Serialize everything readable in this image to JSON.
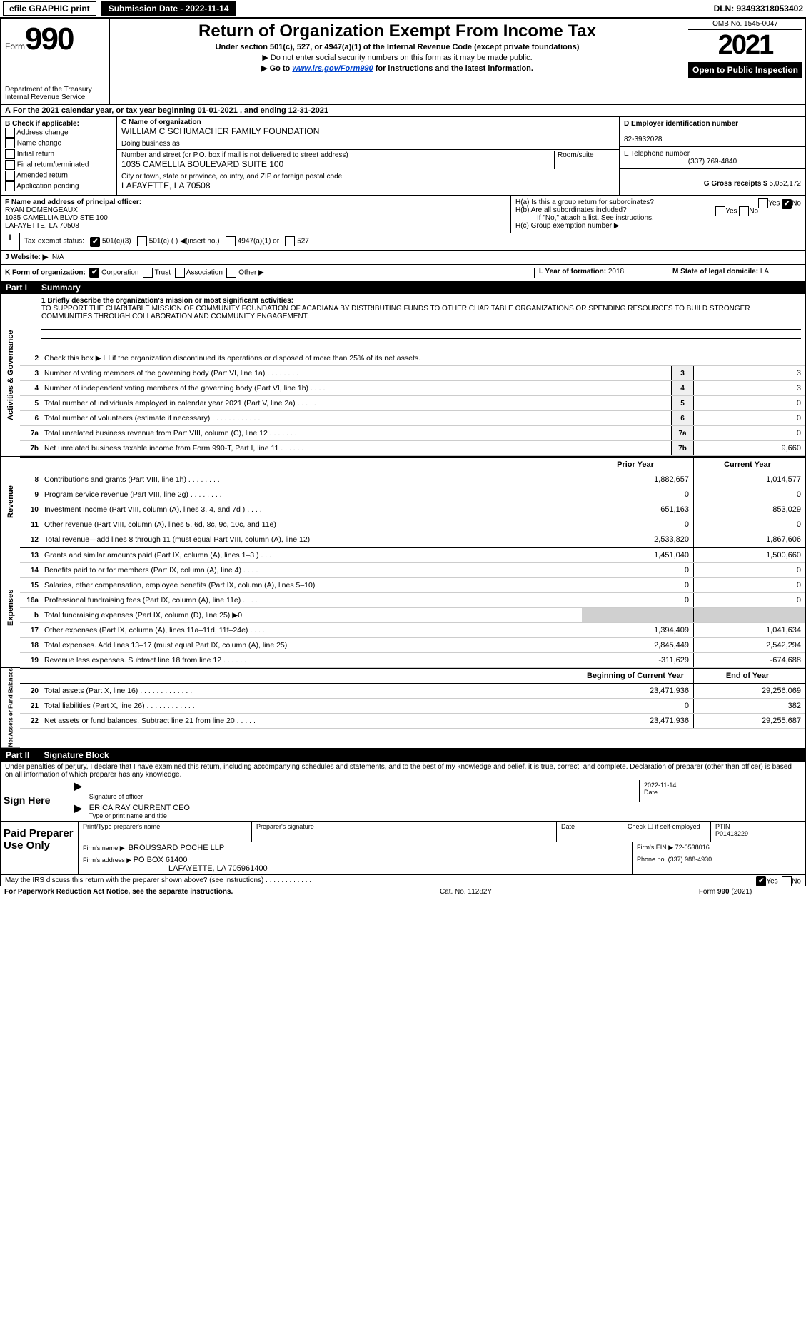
{
  "topbar": {
    "efile": "efile GRAPHIC print",
    "submission": "Submission Date - 2022-11-14",
    "dln": "DLN: 93493318053402"
  },
  "header": {
    "form_prefix": "Form",
    "form_number": "990",
    "title": "Return of Organization Exempt From Income Tax",
    "subtitle1": "Under section 501(c), 527, or 4947(a)(1) of the Internal Revenue Code (except private foundations)",
    "subtitle2": "▶ Do not enter social security numbers on this form as it may be made public.",
    "subtitle3_pre": "▶ Go to ",
    "subtitle3_link": "www.irs.gov/Form990",
    "subtitle3_post": " for instructions and the latest information.",
    "dept": "Department of the Treasury\nInternal Revenue Service",
    "omb": "OMB No. 1545-0047",
    "year": "2021",
    "open_pub": "Open to Public Inspection"
  },
  "section_a": {
    "period": "For the 2021 calendar year, or tax year beginning 01-01-2021    , and ending 12-31-2021"
  },
  "section_b": {
    "label": "B Check if applicable:",
    "items": [
      "Address change",
      "Name change",
      "Initial return",
      "Final return/terminated",
      "Amended return",
      "Application pending"
    ]
  },
  "section_c": {
    "name_label": "C Name of organization",
    "name": "WILLIAM C SCHUMACHER FAMILY FOUNDATION",
    "dba_label": "Doing business as",
    "dba": "",
    "street_label": "Number and street (or P.O. box if mail is not delivered to street address)",
    "room_label": "Room/suite",
    "street": "1035 CAMELLIA BOULEVARD SUITE 100",
    "city_label": "City or town, state or province, country, and ZIP or foreign postal code",
    "city": "LAFAYETTE, LA  70508"
  },
  "section_d": {
    "label": "D Employer identification number",
    "ein": "82-3932028"
  },
  "section_e": {
    "label": "E Telephone number",
    "phone": "(337) 769-4840"
  },
  "section_g": {
    "label": "G Gross receipts $",
    "amount": "5,052,172"
  },
  "section_f": {
    "label": "F Name and address of principal officer:",
    "name": "RYAN DOMENGEAUX",
    "addr1": "1035 CAMELLIA BLVD STE 100",
    "addr2": "LAFAYETTE, LA  70508"
  },
  "section_h": {
    "ha": "H(a)  Is this a group return for subordinates?",
    "hb": "H(b)  Are all subordinates included?",
    "hb_note": "If \"No,\" attach a list. See instructions.",
    "hc": "H(c)  Group exemption number ▶"
  },
  "section_i": {
    "label": "Tax-exempt status:",
    "opt1": "501(c)(3)",
    "opt2": "501(c) (  ) ◀(insert no.)",
    "opt3": "4947(a)(1) or",
    "opt4": "527"
  },
  "section_j": {
    "label": "J    Website: ▶",
    "value": "N/A"
  },
  "section_k": {
    "label": "K Form of organization:",
    "opts": [
      "Corporation",
      "Trust",
      "Association",
      "Other ▶"
    ]
  },
  "section_l": {
    "label": "L Year of formation:",
    "value": "2018"
  },
  "section_m": {
    "label": "M State of legal domicile:",
    "value": "LA"
  },
  "part1": {
    "header_num": "Part I",
    "header_title": "Summary",
    "line1_label": "1  Briefly describe the organization's mission or most significant activities:",
    "line1_text": "TO SUPPORT THE CHARITABLE MISSION OF COMMUNITY FOUNDATION OF ACADIANA BY DISTRIBUTING FUNDS TO OTHER CHARITABLE ORGANIZATIONS OR SPENDING RESOURCES TO BUILD STRONGER COMMUNITIES THROUGH COLLABORATION AND COMMUNITY ENGAGEMENT.",
    "sidebar1": "Activities & Governance",
    "sidebar2": "Revenue",
    "sidebar3": "Expenses",
    "sidebar4": "Net Assets or Fund Balances",
    "line2": "Check this box ▶ ☐ if the organization discontinued its operations or disposed of more than 25% of its net assets.",
    "lines_single": [
      {
        "num": "3",
        "desc": "Number of voting members of the governing body (Part VI, line 1a)  .  .  .  .  .  .  .  .",
        "box": "3",
        "val": "3"
      },
      {
        "num": "4",
        "desc": "Number of independent voting members of the governing body (Part VI, line 1b)  .  .  .  .",
        "box": "4",
        "val": "3"
      },
      {
        "num": "5",
        "desc": "Total number of individuals employed in calendar year 2021 (Part V, line 2a)  .  .  .  .  .",
        "box": "5",
        "val": "0"
      },
      {
        "num": "6",
        "desc": "Total number of volunteers (estimate if necessary)  .  .  .  .  .  .  .  .  .  .  .  .",
        "box": "6",
        "val": "0"
      },
      {
        "num": "7a",
        "desc": "Total unrelated business revenue from Part VIII, column (C), line 12  .  .  .  .  .  .  .",
        "box": "7a",
        "val": "0"
      },
      {
        "num": "7b",
        "desc": "Net unrelated business taxable income from Form 990-T, Part I, line 11  .  .  .  .  .  .",
        "box": "7b",
        "val": "9,660"
      }
    ],
    "col_prior": "Prior Year",
    "col_current": "Current Year",
    "lines_dual_rev": [
      {
        "num": "8",
        "desc": "Contributions and grants (Part VIII, line 1h)  .  .  .  .  .  .  .  .",
        "prior": "1,882,657",
        "cur": "1,014,577"
      },
      {
        "num": "9",
        "desc": "Program service revenue (Part VIII, line 2g)  .  .  .  .  .  .  .  .",
        "prior": "0",
        "cur": "0"
      },
      {
        "num": "10",
        "desc": "Investment income (Part VIII, column (A), lines 3, 4, and 7d )  .  .  .  .",
        "prior": "651,163",
        "cur": "853,029"
      },
      {
        "num": "11",
        "desc": "Other revenue (Part VIII, column (A), lines 5, 6d, 8c, 9c, 10c, and 11e)",
        "prior": "0",
        "cur": "0"
      },
      {
        "num": "12",
        "desc": "Total revenue—add lines 8 through 11 (must equal Part VIII, column (A), line 12)",
        "prior": "2,533,820",
        "cur": "1,867,606"
      }
    ],
    "lines_dual_exp": [
      {
        "num": "13",
        "desc": "Grants and similar amounts paid (Part IX, column (A), lines 1–3 )  .  .  .",
        "prior": "1,451,040",
        "cur": "1,500,660"
      },
      {
        "num": "14",
        "desc": "Benefits paid to or for members (Part IX, column (A), line 4)  .  .  .  .",
        "prior": "0",
        "cur": "0"
      },
      {
        "num": "15",
        "desc": "Salaries, other compensation, employee benefits (Part IX, column (A), lines 5–10)",
        "prior": "0",
        "cur": "0"
      },
      {
        "num": "16a",
        "desc": "Professional fundraising fees (Part IX, column (A), line 11e)  .  .  .  .",
        "prior": "0",
        "cur": "0"
      },
      {
        "num": "b",
        "desc": "Total fundraising expenses (Part IX, column (D), line 25) ▶0",
        "prior": "",
        "cur": ""
      },
      {
        "num": "17",
        "desc": "Other expenses (Part IX, column (A), lines 11a–11d, 11f–24e)  .  .  .  .",
        "prior": "1,394,409",
        "cur": "1,041,634"
      },
      {
        "num": "18",
        "desc": "Total expenses. Add lines 13–17 (must equal Part IX, column (A), line 25)",
        "prior": "2,845,449",
        "cur": "2,542,294"
      },
      {
        "num": "19",
        "desc": "Revenue less expenses. Subtract line 18 from line 12  .  .  .  .  .  .",
        "prior": "-311,629",
        "cur": "-674,688"
      }
    ],
    "col_begin": "Beginning of Current Year",
    "col_end": "End of Year",
    "lines_dual_net": [
      {
        "num": "20",
        "desc": "Total assets (Part X, line 16)  .  .  .  .  .  .  .  .  .  .  .  .  .",
        "prior": "23,471,936",
        "cur": "29,256,069"
      },
      {
        "num": "21",
        "desc": "Total liabilities (Part X, line 26)  .  .  .  .  .  .  .  .  .  .  .  .",
        "prior": "0",
        "cur": "382"
      },
      {
        "num": "22",
        "desc": "Net assets or fund balances. Subtract line 21 from line 20  .  .  .  .  .",
        "prior": "23,471,936",
        "cur": "29,255,687"
      }
    ]
  },
  "part2": {
    "header_num": "Part II",
    "header_title": "Signature Block",
    "penalty": "Under penalties of perjury, I declare that I have examined this return, including accompanying schedules and statements, and to the best of my knowledge and belief, it is true, correct, and complete. Declaration of preparer (other than officer) is based on all information of which preparer has any knowledge."
  },
  "sign": {
    "label": "Sign Here",
    "sig_label": "Signature of officer",
    "date": "2022-11-14",
    "date_label": "Date",
    "name": "ERICA RAY CURRENT CEO",
    "name_label": "Type or print name and title"
  },
  "paid": {
    "label": "Paid Preparer Use Only",
    "h1": "Print/Type preparer's name",
    "h2": "Preparer's signature",
    "h3": "Date",
    "h4": "Check ☐ if self-employed",
    "h5_label": "PTIN",
    "h5": "P01418229",
    "firm_label": "Firm's name    ▶",
    "firm": "BROUSSARD POCHE LLP",
    "ein_label": "Firm's EIN ▶",
    "ein": "72-0538016",
    "addr_label": "Firm's address ▶",
    "addr1": "PO BOX 61400",
    "addr2": "LAFAYETTE, LA  705961400",
    "phone_label": "Phone no.",
    "phone": "(337) 988-4930"
  },
  "discuss": {
    "text": "May the IRS discuss this return with the preparer shown above? (see instructions)  .  .  .  .  .  .  .  .  .  .  .  .",
    "yes": "Yes",
    "no": "No"
  },
  "footer": {
    "left": "For Paperwork Reduction Act Notice, see the separate instructions.",
    "mid": "Cat. No. 11282Y",
    "right": "Form 990 (2021)"
  }
}
